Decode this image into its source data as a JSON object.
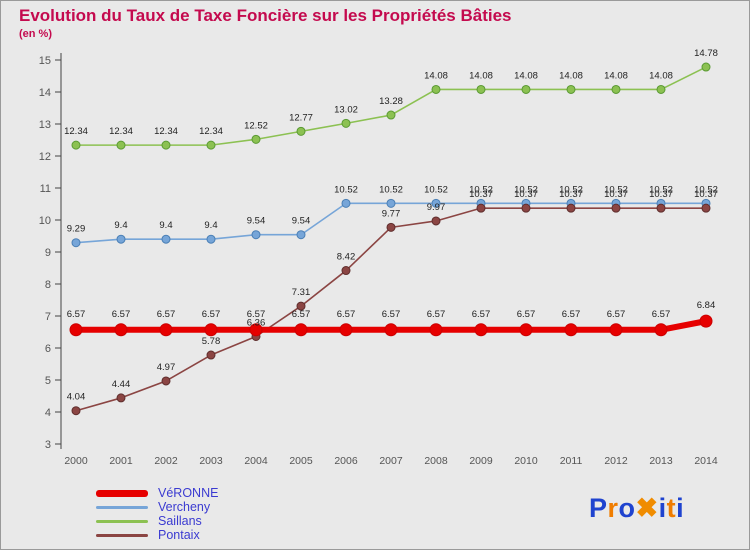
{
  "header": {
    "title": "Evolution du Taux de Taxe Foncière sur les Propriétés Bâties",
    "subtitle": "(en %)",
    "title_color": "#c40a4e"
  },
  "chart_data": {
    "type": "line",
    "title": "Evolution du Taux de Taxe Foncière sur les Propriétés Bâties",
    "unit": "en %",
    "x": [
      2000,
      2001,
      2002,
      2003,
      2004,
      2005,
      2006,
      2007,
      2008,
      2009,
      2010,
      2011,
      2012,
      2013,
      2014
    ],
    "ylim": [
      3,
      15
    ],
    "yticks": [
      3,
      4,
      5,
      6,
      7,
      8,
      9,
      10,
      11,
      12,
      13,
      14,
      15
    ],
    "grid": false,
    "legend_position": "bottom-left",
    "axis_color": "#555555",
    "label_color": "#222222",
    "series": [
      {
        "name": "VéRONNE",
        "color": "#e60000",
        "edge": "#cc0000",
        "width": 6,
        "marker_r": 6,
        "values": [
          6.57,
          6.57,
          6.57,
          6.57,
          6.57,
          6.57,
          6.57,
          6.57,
          6.57,
          6.57,
          6.57,
          6.57,
          6.57,
          6.57,
          6.84
        ]
      },
      {
        "name": "Vercheny",
        "color": "#76a5d8",
        "edge": "#4a7fb5",
        "width": 1.6,
        "marker_r": 4,
        "values": [
          9.29,
          9.4,
          9.4,
          9.4,
          9.54,
          9.54,
          10.52,
          10.52,
          10.52,
          10.52,
          10.52,
          10.52,
          10.52,
          10.52,
          10.52
        ]
      },
      {
        "name": "Saillans",
        "color": "#8cc152",
        "edge": "#5a9a33",
        "width": 1.6,
        "marker_r": 4,
        "values": [
          12.34,
          12.34,
          12.34,
          12.34,
          12.52,
          12.77,
          13.02,
          13.28,
          14.08,
          14.08,
          14.08,
          14.08,
          14.08,
          14.08,
          14.78
        ]
      },
      {
        "name": "Pontaix",
        "color": "#8b4543",
        "edge": "#5f2e2d",
        "width": 1.6,
        "marker_r": 4,
        "values": [
          4.04,
          4.44,
          4.97,
          5.78,
          6.36,
          7.31,
          8.42,
          9.77,
          9.97,
          10.37,
          10.37,
          10.37,
          10.37,
          10.37,
          10.37
        ]
      }
    ]
  },
  "legend": {
    "text_color": "#3b3bd1"
  },
  "logo": {
    "name": "Proxiti",
    "letters": [
      {
        "char": "P",
        "color": "#1f43cf"
      },
      {
        "char": "r",
        "color": "#f07d00"
      },
      {
        "char": "o",
        "color": "#1f43cf"
      },
      {
        "char": "✖",
        "color": "#f08c00"
      },
      {
        "char": "i",
        "color": "#1f43cf"
      },
      {
        "char": "t",
        "color": "#f07d00"
      },
      {
        "char": "i",
        "color": "#1f43cf"
      }
    ]
  }
}
